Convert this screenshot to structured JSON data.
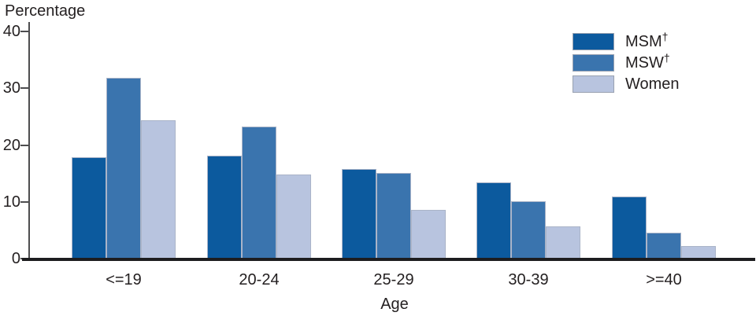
{
  "title": "Percentage",
  "xlabel": "Age",
  "legend": {
    "items": [
      {
        "label": "MSM",
        "sup": "†",
        "color": "#0c5a9e"
      },
      {
        "label": "MSW",
        "sup": "†",
        "color": "#3a74ae"
      },
      {
        "label": "Women",
        "sup": "",
        "color": "#b8c4df"
      }
    ]
  },
  "chart_data": {
    "type": "bar",
    "title": "Percentage",
    "xlabel": "Age",
    "ylabel": "Percentage",
    "categories": [
      "<=19",
      "20-24",
      "25-29",
      "30-39",
      ">=40"
    ],
    "series": [
      {
        "name": "MSM†",
        "color": "#0c5a9e",
        "values": [
          17.8,
          18.1,
          15.8,
          13.4,
          10.9
        ]
      },
      {
        "name": "MSW†",
        "color": "#3a74ae",
        "values": [
          31.8,
          23.2,
          15.1,
          10.1,
          4.5
        ]
      },
      {
        "name": "Women",
        "color": "#b8c4df",
        "values": [
          24.4,
          14.8,
          8.6,
          5.7,
          2.2
        ]
      }
    ],
    "yticks": [
      0,
      10,
      20,
      30,
      40
    ],
    "ylim": [
      0,
      40
    ],
    "grid": false,
    "legend_position": "top-right"
  },
  "colors": {
    "axis": "#4d4d4f",
    "baseline": "#1d1d1f",
    "text": "#231f20",
    "bar_border": "#aab4c8"
  }
}
